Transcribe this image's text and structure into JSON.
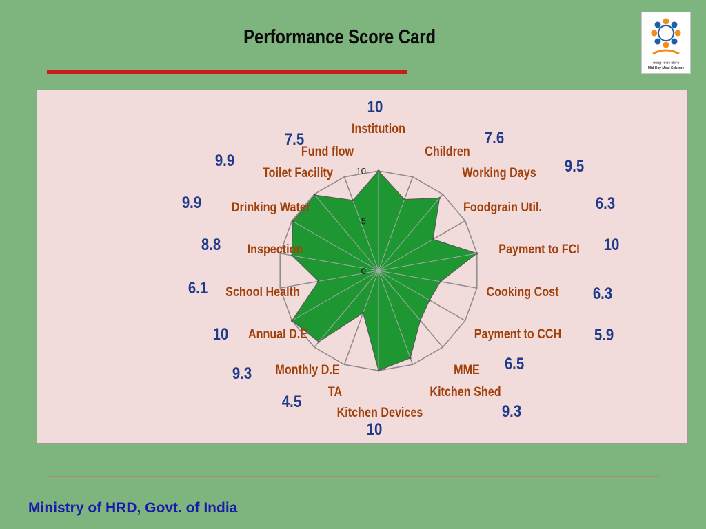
{
  "slide": {
    "title": "Performance Score Card",
    "footer": "Ministry of HRD, Govt. of India"
  },
  "logo": {
    "line1": "मध्याह्न भोजन योजना",
    "line2": "Mid Day Meal Scheme",
    "icon": "mid-day-meal-logo"
  },
  "colors": {
    "background": "#7eb47e",
    "panel": "#f2dcdb",
    "fill": "#1e9632",
    "category_label": "#a0410c",
    "value_label": "#1f3a8a",
    "title_bar": "#cc1b1b",
    "footer": "#1a1aa8"
  },
  "chart_data": {
    "type": "radar",
    "categories": [
      "Institution",
      "Children",
      "Working Days",
      "Foodgrain Util.",
      "Payment to FCI",
      "Cooking Cost",
      "Payment to CCH",
      "MME",
      "Kitchen Shed",
      "Kitchen Devices",
      "TA",
      "Monthly D.E",
      "Annual D.E",
      "School Health",
      "Inspection",
      "Drinking Water",
      "Toilet Facility",
      "Fund flow"
    ],
    "values": [
      10,
      7.6,
      9.5,
      6.3,
      10,
      6.3,
      5.9,
      6.5,
      9.3,
      10,
      4.5,
      9.3,
      10,
      6.1,
      8.8,
      9.9,
      9.9,
      7.5
    ],
    "value_labels": [
      "10",
      "7.6",
      "9.5",
      "6.3",
      "10",
      "6.3",
      "5.9",
      "6.5",
      "9.3",
      "10",
      "4.5",
      "9.3",
      "10",
      "6.1",
      "8.8",
      "9.9",
      "9.9",
      "7.5"
    ],
    "range": [
      0,
      10
    ],
    "ticks": [
      "0",
      "5",
      "10"
    ],
    "grid": true,
    "legend": "none"
  }
}
